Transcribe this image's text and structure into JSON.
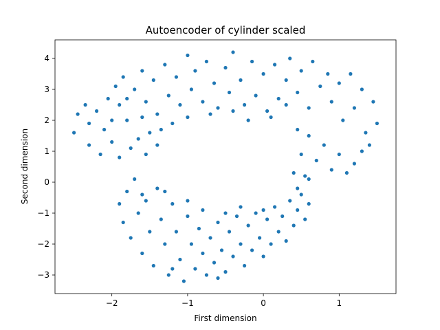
{
  "chart_data": {
    "type": "scatter",
    "title": "Autoencoder of cylinder scaled",
    "xlabel": "First dimension",
    "ylabel": "Second dimension",
    "xlim": [
      -2.75,
      1.75
    ],
    "ylim": [
      -3.6,
      4.6
    ],
    "xticks": [
      -2,
      -1,
      0,
      1
    ],
    "yticks": [
      -3,
      -2,
      -1,
      0,
      1,
      2,
      3,
      4
    ],
    "xtick_labels": [
      "−2",
      "−1",
      "0",
      "1"
    ],
    "ytick_labels": [
      "−3",
      "−2",
      "−1",
      "0",
      "1",
      "2",
      "3",
      "4"
    ],
    "grid": false,
    "marker_color": "#1f77b4",
    "series": [
      {
        "color": "#1f77b4",
        "points": [
          [
            -2.5,
            1.6
          ],
          [
            -2.45,
            2.2
          ],
          [
            -2.35,
            2.5
          ],
          [
            -2.3,
            1.9
          ],
          [
            -2.2,
            2.3
          ],
          [
            -2.1,
            1.7
          ],
          [
            -2.05,
            2.7
          ],
          [
            -1.95,
            3.1
          ],
          [
            -1.9,
            2.5
          ],
          [
            -1.85,
            3.4
          ],
          [
            -1.8,
            2.0
          ],
          [
            -1.7,
            3.0
          ],
          [
            -1.6,
            3.6
          ],
          [
            -1.55,
            2.6
          ],
          [
            -1.45,
            3.3
          ],
          [
            -1.4,
            2.2
          ],
          [
            -1.3,
            3.8
          ],
          [
            -1.25,
            2.8
          ],
          [
            -1.15,
            3.4
          ],
          [
            -1.1,
            2.5
          ],
          [
            -1.0,
            4.1
          ],
          [
            -0.95,
            3.0
          ],
          [
            -0.9,
            3.6
          ],
          [
            -0.8,
            2.6
          ],
          [
            -0.75,
            3.9
          ],
          [
            -0.65,
            3.2
          ],
          [
            -0.6,
            2.4
          ],
          [
            -0.5,
            3.7
          ],
          [
            -0.45,
            2.9
          ],
          [
            -0.4,
            4.2
          ],
          [
            -0.3,
            3.3
          ],
          [
            -0.25,
            2.5
          ],
          [
            -0.15,
            3.9
          ],
          [
            -0.1,
            2.8
          ],
          [
            0.0,
            3.5
          ],
          [
            0.05,
            2.3
          ],
          [
            0.15,
            3.8
          ],
          [
            0.2,
            2.7
          ],
          [
            0.3,
            3.3
          ],
          [
            0.35,
            4.0
          ],
          [
            0.45,
            2.9
          ],
          [
            0.5,
            3.6
          ],
          [
            0.6,
            2.4
          ],
          [
            0.65,
            3.9
          ],
          [
            0.75,
            3.1
          ],
          [
            0.85,
            3.5
          ],
          [
            0.9,
            2.6
          ],
          [
            1.0,
            3.2
          ],
          [
            1.05,
            2.0
          ],
          [
            1.15,
            3.5
          ],
          [
            1.2,
            2.4
          ],
          [
            1.3,
            3.0
          ],
          [
            1.35,
            1.6
          ],
          [
            1.45,
            2.6
          ],
          [
            1.5,
            1.9
          ],
          [
            1.4,
            1.2
          ],
          [
            1.3,
            1.0
          ],
          [
            1.2,
            0.6
          ],
          [
            1.1,
            0.3
          ],
          [
            1.0,
            0.9
          ],
          [
            0.9,
            0.4
          ],
          [
            0.8,
            1.2
          ],
          [
            0.7,
            0.7
          ],
          [
            0.6,
            1.5
          ],
          [
            0.55,
            0.2
          ],
          [
            0.5,
            0.9
          ],
          [
            0.45,
            1.7
          ],
          [
            0.4,
            0.3
          ],
          [
            0.45,
            -0.2
          ],
          [
            0.6,
            0.1
          ],
          [
            -2.3,
            1.2
          ],
          [
            -2.15,
            0.9
          ],
          [
            -2.0,
            1.3
          ],
          [
            -1.9,
            0.8
          ],
          [
            -1.75,
            1.1
          ],
          [
            -1.65,
            1.4
          ],
          [
            -1.55,
            0.9
          ],
          [
            -1.5,
            1.6
          ],
          [
            -1.4,
            1.2
          ],
          [
            -1.35,
            1.7
          ],
          [
            -2.0,
            2.0
          ],
          [
            -1.8,
            2.7
          ],
          [
            -1.6,
            2.1
          ],
          [
            -1.2,
            1.9
          ],
          [
            -1.0,
            2.1
          ],
          [
            -0.7,
            2.2
          ],
          [
            -0.4,
            2.3
          ],
          [
            -0.2,
            2.0
          ],
          [
            0.1,
            2.1
          ],
          [
            0.3,
            2.5
          ],
          [
            -1.9,
            -0.7
          ],
          [
            -1.85,
            -1.3
          ],
          [
            -1.8,
            -0.3
          ],
          [
            -1.75,
            -1.8
          ],
          [
            -1.7,
            0.1
          ],
          [
            -1.65,
            -1.0
          ],
          [
            -1.6,
            -2.3
          ],
          [
            -1.55,
            -0.6
          ],
          [
            -1.5,
            -1.6
          ],
          [
            -1.45,
            -2.7
          ],
          [
            -1.4,
            -0.2
          ],
          [
            -1.35,
            -1.2
          ],
          [
            -1.3,
            -2.0
          ],
          [
            -1.25,
            -3.0
          ],
          [
            -1.2,
            -0.7
          ],
          [
            -1.15,
            -1.6
          ],
          [
            -1.1,
            -2.5
          ],
          [
            -1.05,
            -3.2
          ],
          [
            -1.0,
            -1.1
          ],
          [
            -0.95,
            -2.0
          ],
          [
            -0.9,
            -2.8
          ],
          [
            -0.85,
            -1.5
          ],
          [
            -0.8,
            -2.3
          ],
          [
            -0.75,
            -3.0
          ],
          [
            -0.7,
            -1.8
          ],
          [
            -0.65,
            -2.6
          ],
          [
            -0.6,
            -1.3
          ],
          [
            -0.55,
            -2.2
          ],
          [
            -0.5,
            -2.9
          ],
          [
            -0.45,
            -1.6
          ],
          [
            -0.4,
            -2.4
          ],
          [
            -0.35,
            -1.1
          ],
          [
            -0.3,
            -2.0
          ],
          [
            -0.25,
            -2.7
          ],
          [
            -0.2,
            -1.4
          ],
          [
            -0.15,
            -2.2
          ],
          [
            -0.1,
            -1.0
          ],
          [
            -0.05,
            -1.8
          ],
          [
            0.0,
            -2.4
          ],
          [
            0.05,
            -1.2
          ],
          [
            0.1,
            -2.0
          ],
          [
            0.15,
            -0.8
          ],
          [
            0.2,
            -1.6
          ],
          [
            0.25,
            -1.1
          ],
          [
            0.3,
            -1.9
          ],
          [
            0.35,
            -0.6
          ],
          [
            0.4,
            -1.4
          ],
          [
            0.45,
            -0.9
          ],
          [
            0.5,
            -0.4
          ],
          [
            0.55,
            -1.2
          ],
          [
            0.6,
            -0.7
          ],
          [
            -1.6,
            -0.4
          ],
          [
            -1.3,
            -0.3
          ],
          [
            -1.0,
            -0.6
          ],
          [
            -0.8,
            -0.9
          ],
          [
            -0.5,
            -1.0
          ],
          [
            -0.3,
            -0.8
          ],
          [
            0.0,
            -0.9
          ],
          [
            -1.2,
            -2.8
          ],
          [
            -0.6,
            -3.1
          ]
        ]
      }
    ]
  }
}
